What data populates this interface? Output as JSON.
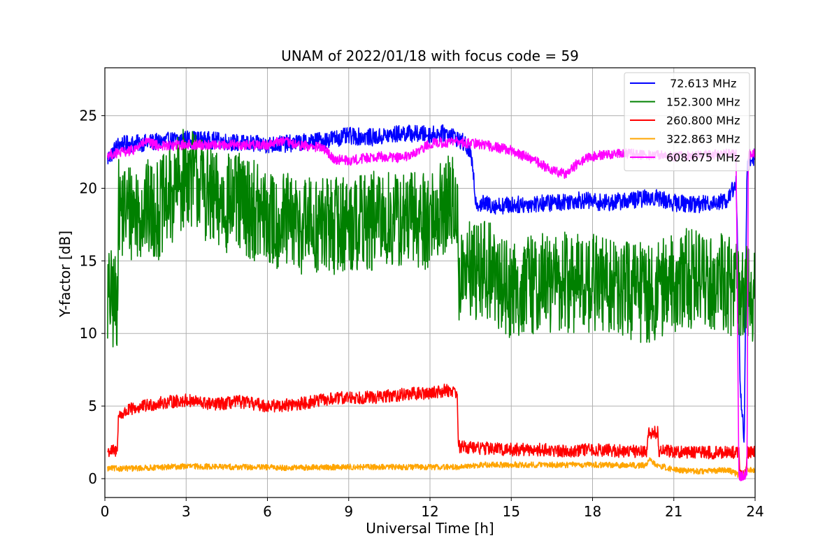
{
  "chart_data": {
    "type": "line",
    "title": "UNAM of 2022/01/18 with focus code = 59",
    "xlabel": "Universal Time [h]",
    "ylabel": "Y-factor [dB]",
    "xlim": [
      0,
      24
    ],
    "ylim": [
      -1.3,
      28.3
    ],
    "xticks": [
      0,
      3,
      6,
      9,
      12,
      15,
      18,
      21,
      24
    ],
    "yticks": [
      0,
      5,
      10,
      15,
      20,
      25
    ],
    "grid": true,
    "legend_position": "top-right",
    "series": [
      {
        "name": " 72.613 MHz",
        "color": "#0000ff",
        "noise": 0.6,
        "points": [
          [
            0.1,
            22.0
          ],
          [
            0.5,
            23.0
          ],
          [
            2,
            23.2
          ],
          [
            3,
            23.4
          ],
          [
            4,
            23.3
          ],
          [
            5,
            23.1
          ],
          [
            6,
            23.0
          ],
          [
            7,
            23.1
          ],
          [
            8,
            23.3
          ],
          [
            9,
            23.6
          ],
          [
            10,
            23.5
          ],
          [
            11,
            23.8
          ],
          [
            12,
            23.7
          ],
          [
            12.7,
            23.8
          ],
          [
            13.2,
            23.2
          ],
          [
            13.5,
            22.5
          ],
          [
            13.7,
            19.0
          ],
          [
            14.5,
            18.8
          ],
          [
            15.5,
            18.9
          ],
          [
            16.5,
            19.0
          ],
          [
            17.5,
            19.2
          ],
          [
            18.5,
            19.0
          ],
          [
            19.5,
            19.2
          ],
          [
            20.3,
            19.4
          ],
          [
            21,
            19.0
          ],
          [
            22,
            18.9
          ],
          [
            23,
            19.2
          ],
          [
            23.3,
            20.5
          ],
          [
            23.45,
            6.5
          ],
          [
            23.6,
            2.5
          ],
          [
            23.7,
            21.5
          ],
          [
            24,
            22.3
          ]
        ]
      },
      {
        "name": "152.300 MHz",
        "color": "#008000",
        "noise": 3.5,
        "points": [
          [
            0.1,
            12.5
          ],
          [
            0.45,
            12.0
          ],
          [
            0.5,
            18.5
          ],
          [
            1,
            18.5
          ],
          [
            2,
            18.5
          ],
          [
            2.5,
            19.5
          ],
          [
            3,
            21.0
          ],
          [
            3.5,
            20.5
          ],
          [
            4,
            19.0
          ],
          [
            5,
            19.0
          ],
          [
            5.5,
            18.5
          ],
          [
            6,
            17.8
          ],
          [
            7,
            17.5
          ],
          [
            8,
            17.4
          ],
          [
            9,
            17.6
          ],
          [
            10,
            17.7
          ],
          [
            11,
            17.8
          ],
          [
            12,
            17.9
          ],
          [
            12.8,
            19.0
          ],
          [
            13,
            18.5
          ],
          [
            13.05,
            14.0
          ],
          [
            14,
            14.5
          ],
          [
            15,
            13.0
          ],
          [
            16,
            13.5
          ],
          [
            17,
            13.5
          ],
          [
            18,
            13.5
          ],
          [
            19,
            13.0
          ],
          [
            20,
            12.8
          ],
          [
            21,
            13.5
          ],
          [
            22,
            14.0
          ],
          [
            23,
            13.5
          ],
          [
            23.5,
            12.5
          ],
          [
            24,
            13.0
          ]
        ]
      },
      {
        "name": "260.800 MHz",
        "color": "#ff0000",
        "noise": 0.45,
        "points": [
          [
            0.1,
            1.9
          ],
          [
            0.45,
            1.9
          ],
          [
            0.5,
            4.3
          ],
          [
            1,
            4.8
          ],
          [
            2,
            5.2
          ],
          [
            3,
            5.4
          ],
          [
            4,
            5.1
          ],
          [
            5,
            5.3
          ],
          [
            6,
            5.0
          ],
          [
            7,
            5.1
          ],
          [
            8,
            5.4
          ],
          [
            9,
            5.6
          ],
          [
            10,
            5.6
          ],
          [
            11,
            5.8
          ],
          [
            12,
            5.9
          ],
          [
            12.6,
            6.1
          ],
          [
            13,
            6.0
          ],
          [
            13.05,
            2.2
          ],
          [
            14,
            2.1
          ],
          [
            15,
            2.0
          ],
          [
            16,
            2.0
          ],
          [
            17,
            1.9
          ],
          [
            18,
            2.0
          ],
          [
            19,
            1.9
          ],
          [
            20,
            1.9
          ],
          [
            20.05,
            3.2
          ],
          [
            20.4,
            3.2
          ],
          [
            20.45,
            1.9
          ],
          [
            21,
            1.9
          ],
          [
            22,
            1.8
          ],
          [
            23,
            1.8
          ],
          [
            23.4,
            1.8
          ],
          [
            23.45,
            0.3
          ],
          [
            23.65,
            0.3
          ],
          [
            23.7,
            1.8
          ],
          [
            24,
            1.8
          ]
        ]
      },
      {
        "name": "322.863 MHz",
        "color": "#ffa500",
        "noise": 0.2,
        "points": [
          [
            0.1,
            0.7
          ],
          [
            1,
            0.7
          ],
          [
            3,
            0.85
          ],
          [
            5,
            0.8
          ],
          [
            7,
            0.75
          ],
          [
            9,
            0.8
          ],
          [
            11,
            0.8
          ],
          [
            13,
            0.8
          ],
          [
            14,
            0.95
          ],
          [
            16,
            0.95
          ],
          [
            18,
            0.95
          ],
          [
            20,
            0.9
          ],
          [
            20.1,
            1.4
          ],
          [
            20.3,
            1.0
          ],
          [
            21,
            0.6
          ],
          [
            22,
            0.5
          ],
          [
            23,
            0.6
          ],
          [
            23.45,
            0.2
          ],
          [
            23.65,
            0.2
          ],
          [
            23.7,
            0.6
          ],
          [
            24,
            0.6
          ]
        ]
      },
      {
        "name": "608.675 MHz",
        "color": "#ff00ff",
        "noise": 0.35,
        "points": [
          [
            0.1,
            22.3
          ],
          [
            1,
            22.6
          ],
          [
            1.5,
            23.2
          ],
          [
            2,
            22.9
          ],
          [
            3,
            23.0
          ],
          [
            4,
            23.0
          ],
          [
            5,
            23.0
          ],
          [
            6,
            23.0
          ],
          [
            6.5,
            23.3
          ],
          [
            7,
            23.0
          ],
          [
            8,
            22.8
          ],
          [
            8.5,
            22.0
          ],
          [
            9,
            21.9
          ],
          [
            10,
            22.2
          ],
          [
            11,
            22.1
          ],
          [
            11.5,
            22.4
          ],
          [
            12,
            23.1
          ],
          [
            13,
            23.2
          ],
          [
            14,
            23.0
          ],
          [
            14.5,
            22.8
          ],
          [
            15,
            22.6
          ],
          [
            16,
            21.8
          ],
          [
            16.5,
            21.2
          ],
          [
            17,
            21.0
          ],
          [
            17.5,
            21.8
          ],
          [
            18,
            22.2
          ],
          [
            19,
            22.4
          ],
          [
            20,
            22.3
          ],
          [
            21,
            22.2
          ],
          [
            22,
            22.3
          ],
          [
            23,
            22.4
          ],
          [
            23.3,
            22.3
          ],
          [
            23.4,
            0.2
          ],
          [
            23.6,
            0.2
          ],
          [
            23.7,
            0.5
          ],
          [
            23.75,
            22.3
          ],
          [
            24,
            22.4
          ]
        ]
      }
    ]
  }
}
